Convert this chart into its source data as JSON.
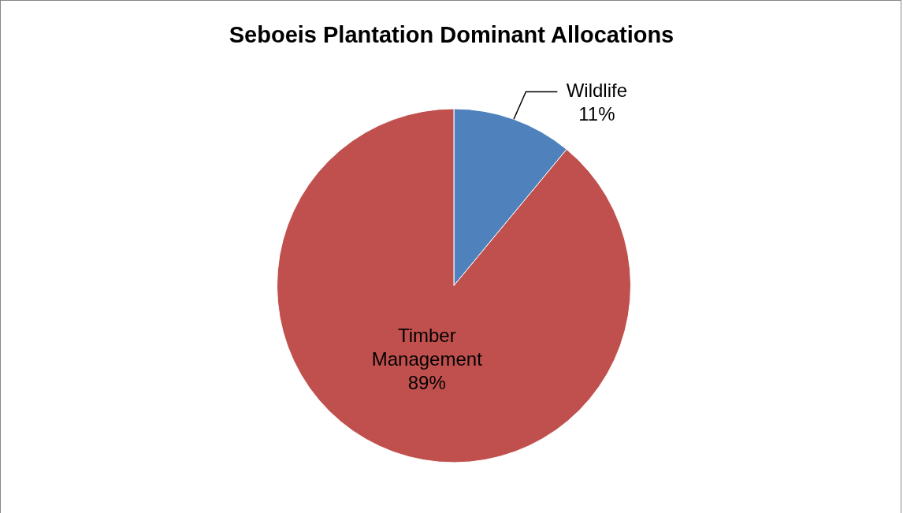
{
  "chart_data": {
    "type": "pie",
    "title": "Seboeis Plantation Dominant Allocations",
    "categories": [
      "Wildlife",
      "Timber Management"
    ],
    "values": [
      11,
      89
    ],
    "colors": [
      "#4f81bd",
      "#c0504d"
    ],
    "value_labels": [
      "11%",
      "89%"
    ],
    "legend": false
  }
}
